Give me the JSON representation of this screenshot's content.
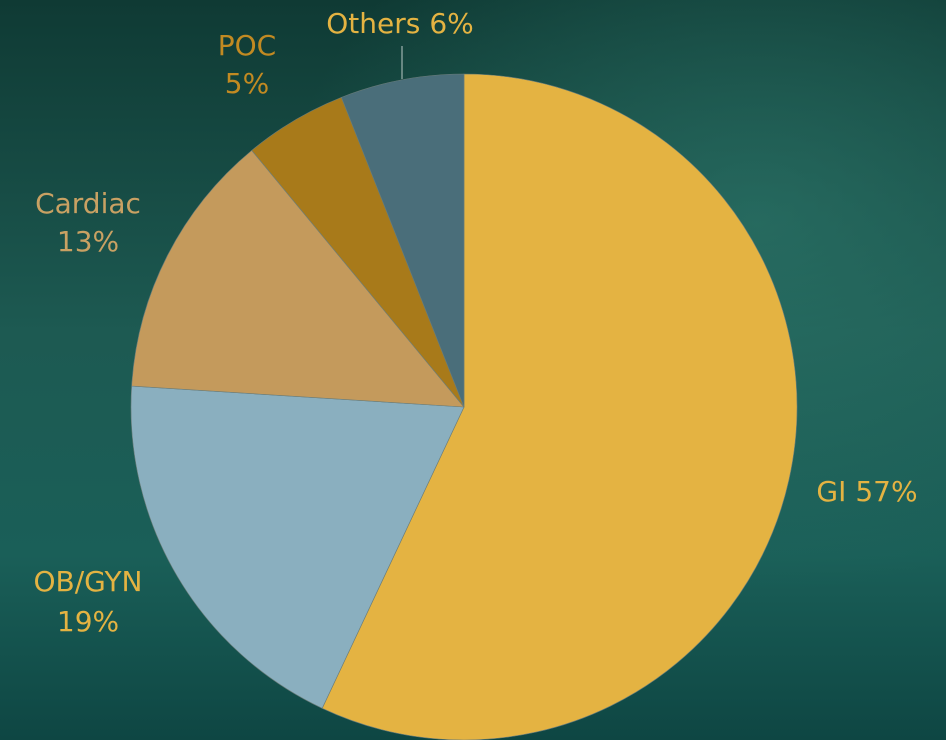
{
  "chart_data": {
    "type": "pie",
    "categories": [
      "GI",
      "OB/GYN",
      "Cardiac",
      "POC",
      "Others"
    ],
    "values": [
      57,
      19,
      13,
      5,
      6
    ],
    "value_labels": [
      "57%",
      "19%",
      "13%",
      "5%",
      "6%"
    ],
    "colors": [
      "#e4b342",
      "#8aafbf",
      "#c49a5c",
      "#a87a1a",
      "#4a6e7a"
    ],
    "label_colors": [
      "#e4b342",
      "#e4b342",
      "#c9a163",
      "#c28a22",
      "#e4b342"
    ]
  }
}
